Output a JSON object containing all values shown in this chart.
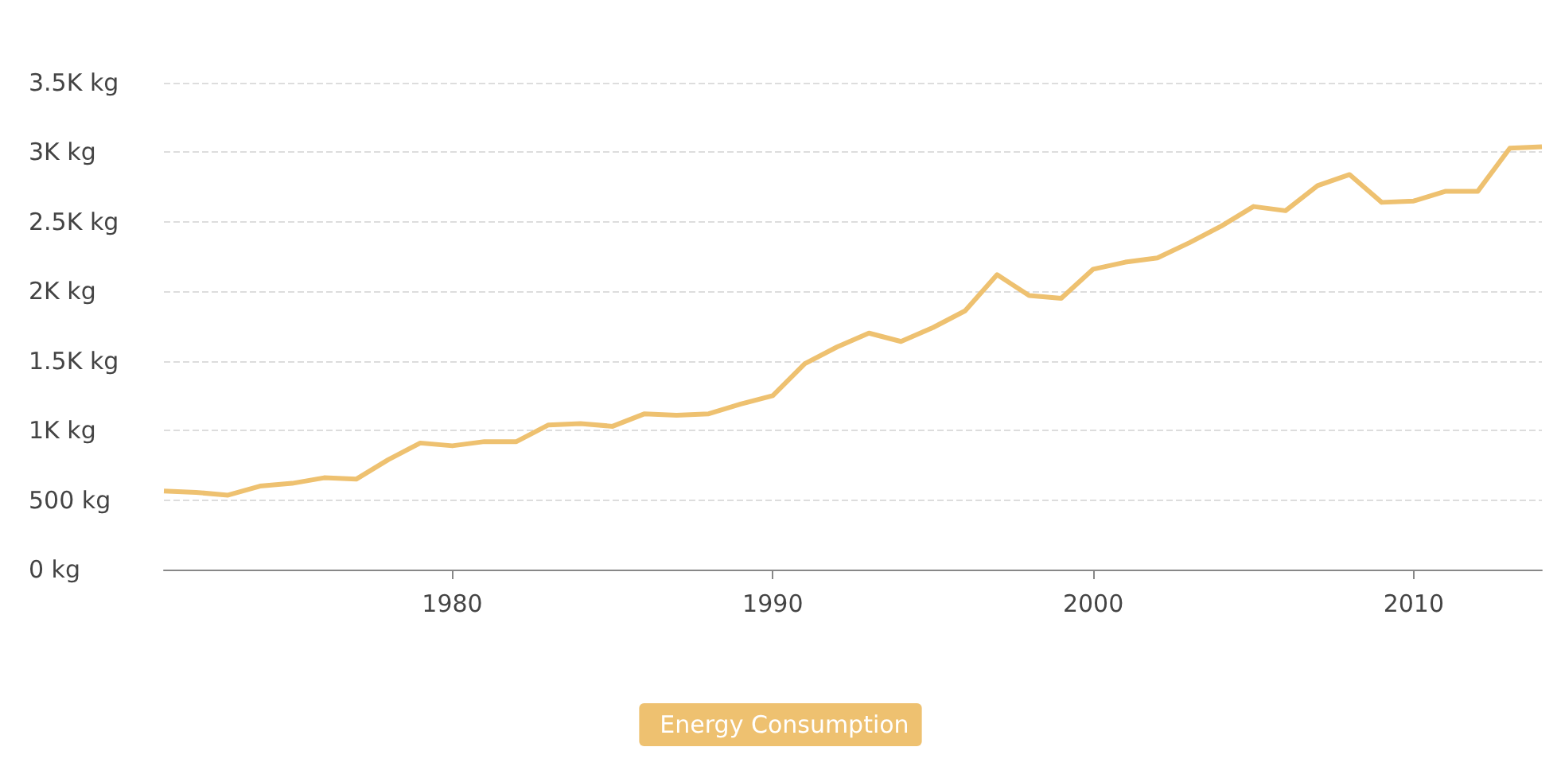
{
  "chart_data": {
    "type": "line",
    "x": [
      1971,
      1972,
      1973,
      1974,
      1975,
      1976,
      1977,
      1978,
      1979,
      1980,
      1981,
      1982,
      1983,
      1984,
      1985,
      1986,
      1987,
      1988,
      1989,
      1990,
      1991,
      1992,
      1993,
      1994,
      1995,
      1996,
      1997,
      1998,
      1999,
      2000,
      2001,
      2002,
      2003,
      2004,
      2005,
      2006,
      2007,
      2008,
      2009,
      2010,
      2011,
      2012,
      2013,
      2014
    ],
    "series": [
      {
        "name": "Energy Consumption",
        "color": "#eec170",
        "values": [
          565,
          555,
          535,
          600,
          620,
          660,
          650,
          790,
          910,
          890,
          920,
          920,
          1040,
          1050,
          1030,
          1120,
          1110,
          1120,
          1190,
          1250,
          1480,
          1600,
          1700,
          1640,
          1740,
          1860,
          2120,
          1970,
          1950,
          2160,
          2210,
          2240,
          2350,
          2470,
          2610,
          2580,
          2760,
          2840,
          2640,
          2650,
          2720,
          2720,
          3030,
          3040
        ]
      }
    ],
    "xlim": [
      1971,
      2014
    ],
    "xticks": [
      1980,
      1990,
      2000,
      2010
    ],
    "ylim": [
      0,
      3500
    ],
    "yticks": [
      {
        "value": 0,
        "label": "0 kg"
      },
      {
        "value": 500,
        "label": "500 kg"
      },
      {
        "value": 1000,
        "label": "1K kg"
      },
      {
        "value": 1500,
        "label": "1.5K kg"
      },
      {
        "value": 2000,
        "label": "2K kg"
      },
      {
        "value": 2500,
        "label": "2.5K kg"
      },
      {
        "value": 3000,
        "label": "3K kg"
      },
      {
        "value": 3500,
        "label": "3.5K kg"
      }
    ],
    "grid": "y",
    "legend": "bottom",
    "marker": "none",
    "line_style": "solid"
  }
}
